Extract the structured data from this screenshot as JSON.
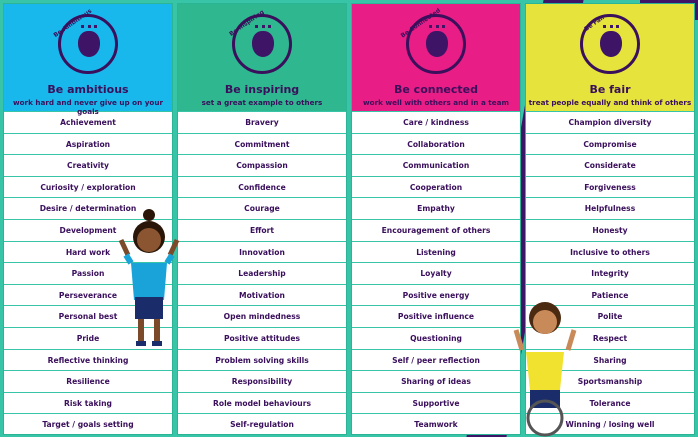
{
  "colors": {
    "background": "#38c4a6",
    "text": "#3a0f5c",
    "ambitious": "#19b8ec",
    "inspiring": "#2fb78f",
    "connected": "#e81d86",
    "fair": "#e6e43c"
  },
  "columns": [
    {
      "badge": "Be Ambitious",
      "title": "Be ambitious",
      "subtitle": "work hard and never give up on your goals",
      "items": [
        "Achievement",
        "Aspiration",
        "Creativity",
        "Curiosity / exploration",
        "Desire / determination",
        "Development",
        "Hard work",
        "Passion",
        "Perseverance",
        "Personal best",
        "Pride",
        "Reflective thinking",
        "Resilience",
        "Risk taking",
        "Target / goals setting"
      ]
    },
    {
      "badge": "Be Inspiring",
      "title": "Be inspiring",
      "subtitle": "set a great example to others",
      "items": [
        "Bravery",
        "Commitment",
        "Compassion",
        "Confidence",
        "Courage",
        "Effort",
        "Innovation",
        "Leadership",
        "Motivation",
        "Open mindedness",
        "Positive attitudes",
        "Problem solving skills",
        "Responsibility",
        "Role model behaviours",
        "Self-regulation"
      ]
    },
    {
      "badge": "Be Connected",
      "title": "Be connected",
      "subtitle": "work well with others and in a team",
      "items": [
        "Care / kindness",
        "Collaboration",
        "Communication",
        "Cooperation",
        "Empathy",
        "Encouragement of others",
        "Listening",
        "Loyalty",
        "Positive energy",
        "Positive influence",
        "Questioning",
        "Self / peer reflection",
        "Sharing of ideas",
        "Supportive",
        "Teamwork"
      ]
    },
    {
      "badge": "Be Fair",
      "title": "Be fair",
      "subtitle": "treat people equally and think of others",
      "items": [
        "Champion diversity",
        "Compromise",
        "Considerate",
        "Forgiveness",
        "Helpfulness",
        "Honesty",
        "Inclusive to others",
        "Integrity",
        "Patience",
        "Polite",
        "Respect",
        "Sharing",
        "Sportsmanship",
        "Tolerance",
        "Winning / losing well"
      ]
    }
  ]
}
